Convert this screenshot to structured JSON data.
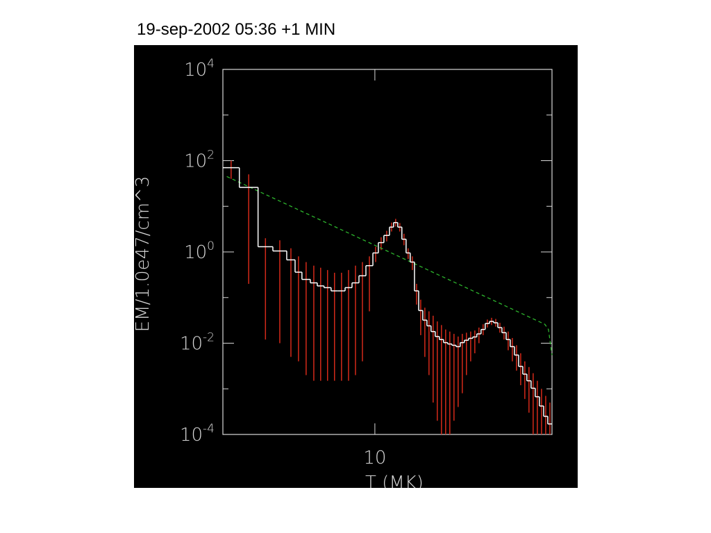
{
  "chart_data": {
    "type": "histogram",
    "title": "19-sep-2002 05:36 +1 MIN",
    "xlabel": "T (MK)",
    "ylabel": "EM/1.0e47/cm^3",
    "xscale": "log",
    "yscale": "log",
    "xlim": [
      5,
      22.43
    ],
    "ylim": [
      0.0001,
      10000
    ],
    "xticks": [
      10
    ],
    "yticks": [
      {
        "value": 0.0001,
        "label": "10",
        "exponent": "-4"
      },
      {
        "value": 0.01,
        "label": "10",
        "exponent": "-2"
      },
      {
        "value": 1,
        "label": "10",
        "exponent": "0"
      },
      {
        "value": 100,
        "label": "10",
        "exponent": "2"
      },
      {
        "value": 10000,
        "label": "10",
        "exponent": "4"
      }
    ],
    "yminor": [
      0.001,
      0.1,
      10,
      1000
    ],
    "bins": [
      5.0,
      5.39,
      5.87,
      6.28,
      6.69,
      6.95,
      7.17,
      7.45,
      7.69,
      7.93,
      8.19,
      8.45,
      8.73,
      9.01,
      9.3,
      9.6,
      9.91,
      10.16,
      10.42,
      10.69,
      10.89,
      11.1,
      11.31,
      11.53,
      11.75,
      11.98,
      12.21,
      12.44,
      12.68,
      12.92,
      13.17,
      13.42,
      13.68,
      13.94,
      14.21,
      14.48,
      14.76,
      15.04,
      15.33,
      15.63,
      15.92,
      16.23,
      16.54,
      16.87,
      17.19,
      17.52,
      17.85,
      18.2,
      18.54,
      18.9,
      19.26,
      19.63,
      20.0,
      20.39,
      20.78,
      21.18,
      21.59,
      22.0,
      22.43
    ],
    "values": [
      70,
      26,
      1.3,
      1.05,
      0.67,
      0.36,
      0.25,
      0.21,
      0.18,
      0.165,
      0.14,
      0.14,
      0.165,
      0.21,
      0.3,
      0.5,
      0.95,
      1.6,
      2.3,
      3.5,
      4.4,
      3.5,
      1.9,
      0.95,
      0.6,
      0.14,
      0.052,
      0.032,
      0.024,
      0.018,
      0.014,
      0.012,
      0.0103,
      0.0096,
      0.009,
      0.0084,
      0.0103,
      0.0116,
      0.0128,
      0.0137,
      0.016,
      0.02,
      0.027,
      0.03,
      0.028,
      0.022,
      0.017,
      0.012,
      0.0084,
      0.0055,
      0.0031,
      0.0021,
      0.0015,
      0.00103,
      0.00067,
      0.00042,
      0.00025,
      0.00017
    ],
    "color": "#ffffff",
    "error_low": [
      40,
      0.2,
      0.012,
      0.01,
      0.005,
      0.004,
      0.002,
      0.0015,
      0.0015,
      0.0015,
      0.0015,
      0.0015,
      0.0015,
      0.002,
      0.004,
      0.05,
      0.6,
      1.1,
      1.7,
      2.8,
      3.6,
      2.8,
      1.4,
      0.7,
      0.4,
      0.07,
      0.015,
      0.005,
      0.002,
      0.0005,
      0.0002,
      0.0001,
      0.0001,
      0.0001,
      0.0002,
      0.0004,
      0.0008,
      0.002,
      0.004,
      0.006,
      0.01,
      0.015,
      0.022,
      0.025,
      0.023,
      0.017,
      0.012,
      0.007,
      0.004,
      0.0025,
      0.0012,
      0.0006,
      0.0003,
      0.0001,
      0.0001,
      0.0001,
      0.0001,
      0.0001
    ],
    "error_high": [
      100,
      50,
      2,
      1.8,
      1.2,
      0.8,
      0.6,
      0.5,
      0.45,
      0.4,
      0.35,
      0.35,
      0.4,
      0.5,
      0.6,
      0.8,
      1.3,
      2.1,
      2.9,
      4.4,
      5.3,
      4.3,
      2.5,
      1.2,
      0.8,
      0.2,
      0.09,
      0.06,
      0.05,
      0.04,
      0.03,
      0.025,
      0.02,
      0.018,
      0.016,
      0.014,
      0.016,
      0.017,
      0.018,
      0.019,
      0.022,
      0.026,
      0.033,
      0.036,
      0.034,
      0.028,
      0.023,
      0.018,
      0.013,
      0.009,
      0.006,
      0.004,
      0.003,
      0.0022,
      0.0015,
      0.001,
      0.0007,
      0.0005
    ],
    "error_color": "#d42a1a",
    "fit": {
      "x": [
        5.09,
        21.7,
        22.07,
        22.43
      ],
      "values": [
        45,
        0.026,
        0.02,
        0.0055
      ],
      "color": "#2db52d",
      "dashed": true
    }
  }
}
